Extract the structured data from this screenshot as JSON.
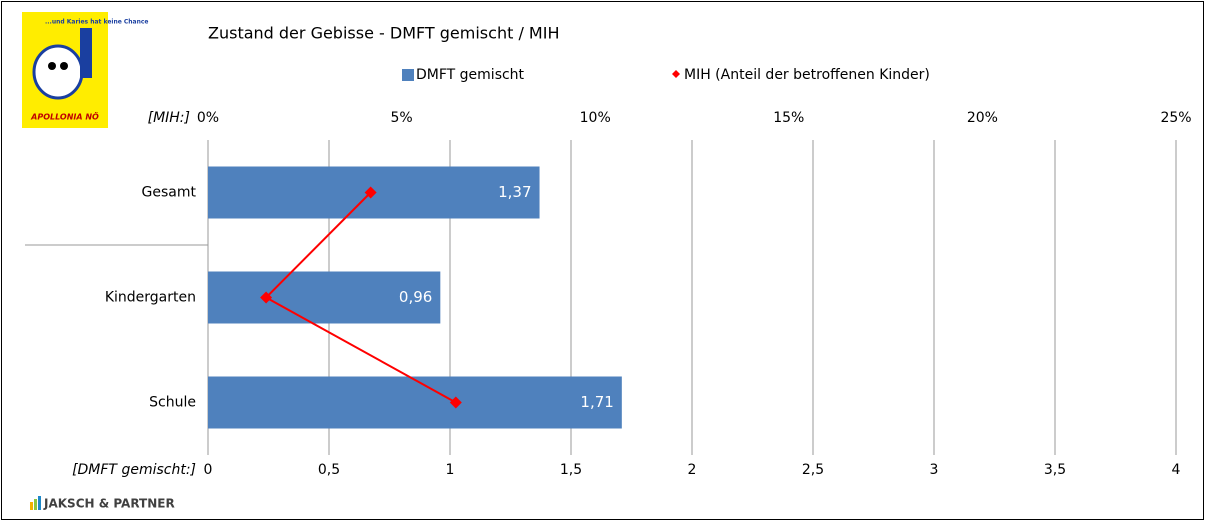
{
  "chart_data": {
    "type": "bar",
    "orientation": "horizontal",
    "title": "Zustand der Gebisse - DMFT gemischt / MIH",
    "xlabel": "[DMFT gemischt:]",
    "x2label": "[MIH:]",
    "categories": [
      "Gesamt",
      "Kindergarten",
      "Schule"
    ],
    "series": [
      {
        "name": "DMFT gemischt",
        "color": "#4f81bd",
        "values": [
          1.37,
          0.96,
          1.71
        ],
        "value_labels": [
          "1,37",
          "0,96",
          "1,71"
        ]
      },
      {
        "name": "MIH (Anteil der betroffenen Kinder)",
        "color": "#ff0000",
        "type": "line",
        "axis": "x2",
        "values": [
          4.2,
          1.5,
          6.4
        ]
      }
    ],
    "xlim": [
      0,
      4
    ],
    "xticks": [
      0,
      {
        "value": 0.5,
        "label": "0,5"
      },
      1,
      {
        "value": 1.5,
        "label": "1,5"
      },
      2,
      {
        "value": 2.5,
        "label": "2,5"
      },
      3,
      {
        "value": 3.5,
        "label": "3,5"
      },
      4
    ],
    "x2lim": [
      0,
      25
    ],
    "x2ticks": [
      {
        "value": 0,
        "label": "0%"
      },
      {
        "value": 5,
        "label": "5%"
      },
      {
        "value": 10,
        "label": "10%"
      },
      {
        "value": 15,
        "label": "15%"
      },
      {
        "value": 20,
        "label": "20%"
      },
      {
        "value": 25,
        "label": "25%"
      }
    ],
    "grid": true,
    "legend": "top"
  },
  "logo": {
    "tagline": "...und Karies hat keine Chance",
    "name": "APOLLONIA NÖ"
  },
  "footer": "JAKSCH & PARTNER"
}
